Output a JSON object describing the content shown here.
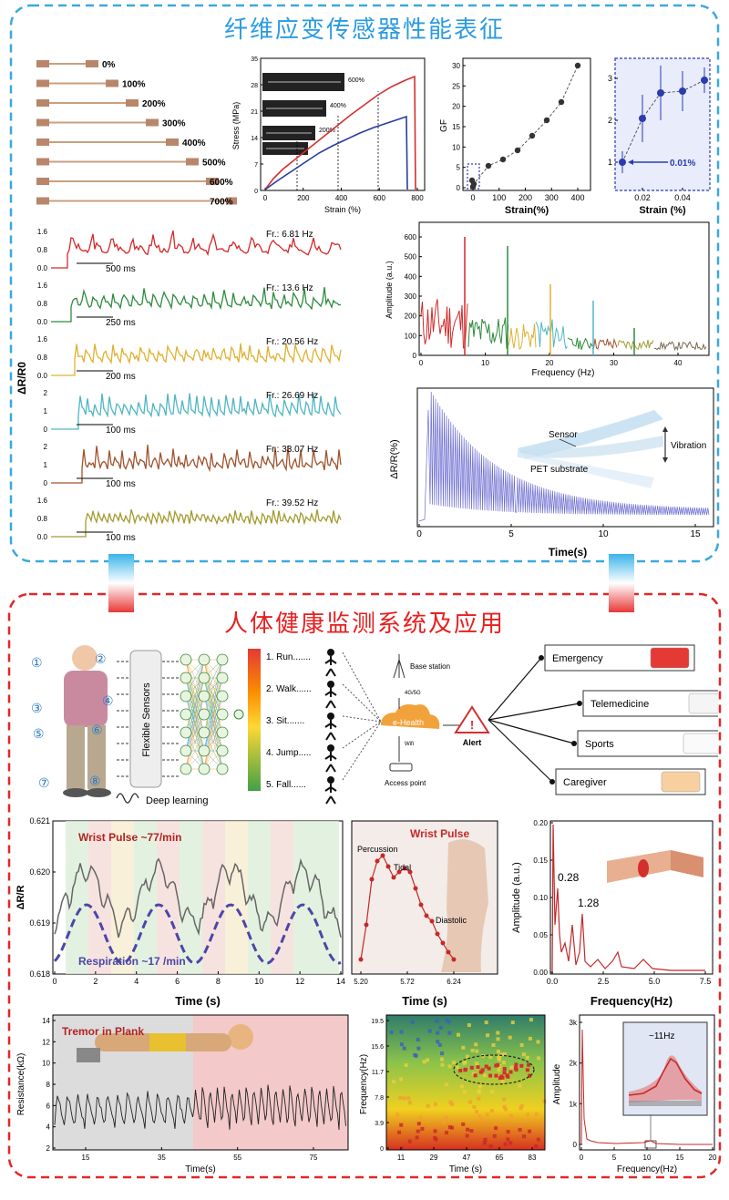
{
  "top_title": "纤维应变传感器性能表征",
  "bottom_title": "人体健康监测系统及应用",
  "strain_photo_labels": [
    "0%",
    "100%",
    "200%",
    "300%",
    "400%",
    "500%",
    "600%",
    "700%"
  ],
  "stress_strain": {
    "ylabel": "Stress (MPa)",
    "xlabel": "Strain (%)",
    "yticks": [
      "0",
      "7",
      "14",
      "21",
      "28",
      "35"
    ],
    "xticks": [
      "0",
      "200",
      "400",
      "600",
      "800"
    ],
    "inset_labels": [
      "200%",
      "400%",
      "600%"
    ]
  },
  "gf_chart": {
    "ylabel": "GF",
    "xlabel": "Strain(%)",
    "yticks": [
      "0",
      "5",
      "10",
      "15",
      "20",
      "25",
      "30"
    ],
    "xticks": [
      "0",
      "100",
      "200",
      "300",
      "400"
    ]
  },
  "gf_zoom": {
    "xlabel": "Strain (%)",
    "yticks": [
      "1",
      "2",
      "3"
    ],
    "xticks": [
      "0.02",
      "0.04"
    ],
    "annotation": "0.01%"
  },
  "vibration_ylabel": "ΔR/R0",
  "vibration_traces": [
    {
      "freq": "Fr.: 6.81 Hz",
      "period": "500 ms",
      "yticks": [
        "0.0",
        "0.8",
        "1.6"
      ],
      "color": "#d62728"
    },
    {
      "freq": "Fr.: 13.6 Hz",
      "period": "250 ms",
      "yticks": [
        "0.0",
        "0.8",
        "1.6"
      ],
      "color": "#2e8b3e"
    },
    {
      "freq": "Fr.: 20.56 Hz",
      "period": "200 ms",
      "yticks": [
        "0.0",
        "0.8",
        "1.6"
      ],
      "color": "#e0b030"
    },
    {
      "freq": "Fr.: 26.69 Hz",
      "period": "100 ms",
      "yticks": [
        "0",
        "1",
        "2"
      ],
      "color": "#4fb6c4"
    },
    {
      "freq": "Fr.: 33.07 Hz",
      "period": "100 ms",
      "yticks": [
        "0",
        "1",
        "2"
      ],
      "color": "#a0522d"
    },
    {
      "freq": "Fr.: 39.52 Hz",
      "period": "100 ms",
      "yticks": [
        "0.0",
        "0.8",
        "1.6"
      ],
      "color": "#a39a30"
    }
  ],
  "spectrum": {
    "ylabel": "Amplitude (a.u.)",
    "xlabel": "Frequency (Hz)",
    "yticks": [
      "0",
      "100",
      "200",
      "300",
      "400",
      "500",
      "600"
    ],
    "xticks": [
      "0",
      "10",
      "20",
      "30",
      "40"
    ]
  },
  "decay": {
    "ylabel": "ΔR/R(%)",
    "xlabel": "Time(s)",
    "xticks": [
      "0",
      "5",
      "10",
      "15"
    ],
    "labels": {
      "sensor": "Sensor",
      "substrate": "PET substrate",
      "vibration": "Vibration"
    }
  },
  "system": {
    "body_markers": [
      "①",
      "②",
      "③",
      "④",
      "⑤",
      "⑥",
      "⑦",
      "⑧"
    ],
    "flexible_sensors": "Flexible Sensors",
    "deep_learning": "Deep learning",
    "activities": [
      "1. Run.......",
      "2. Walk......",
      "3. Sit.......",
      "4. Jump.....",
      "5. Fall......"
    ],
    "base_station": "Base station",
    "network": "4G/5G",
    "ehealth": "e-Health",
    "wifi": "Wifi",
    "access_point": "Access point",
    "alert": "Alert",
    "destinations": [
      "Emergency",
      "Telemedicine",
      "Sports",
      "Caregiver"
    ]
  },
  "pulse_chart": {
    "ylabel": "ΔR/R",
    "xlabel": "Time (s)",
    "yticks": [
      "0.618",
      "0.619",
      "0.620",
      "0.621"
    ],
    "xticks": [
      "0",
      "2",
      "4",
      "6",
      "8",
      "10",
      "12",
      "14"
    ],
    "label_pulse": "Wrist Pulse ~77/min",
    "label_resp": "Respiration ~17 /min"
  },
  "wrist_pulse": {
    "title": "Wrist Pulse",
    "labels": [
      "Percussion",
      "Tidal",
      "Diastolic"
    ],
    "xlabel": "Time (s)",
    "xticks": [
      "5.20",
      "5.72",
      "6.24"
    ]
  },
  "pulse_fft": {
    "ylabel": "Amplitude (a.u.)",
    "xlabel": "Frequency(Hz)",
    "yticks": [
      "0.00",
      "0.05",
      "0.10",
      "0.15",
      "0.20"
    ],
    "xticks": [
      "0.0",
      "2.5",
      "5.0",
      "7.5"
    ],
    "peaks": [
      "0.28",
      "1.28"
    ]
  },
  "tremor": {
    "title": "Tremor in Plank",
    "ylabel": "Resistance(kΩ)",
    "xlabel": "Time(s)",
    "yticks": [
      "2",
      "4",
      "6",
      "8",
      "10",
      "12",
      "14"
    ],
    "xticks": [
      "15",
      "35",
      "55",
      "75"
    ]
  },
  "spectrogram": {
    "ylabel": "Frequency(Hz)",
    "xlabel": "Time (s)",
    "yticks": [
      "0",
      "3.9",
      "7.8",
      "11.7",
      "15.6",
      "19.5"
    ],
    "xticks": [
      "11",
      "29",
      "47",
      "65",
      "83"
    ]
  },
  "tremor_fft": {
    "ylabel": "Amplitude",
    "xlabel": "Frequency(Hz)",
    "yticks": [
      "0",
      "1k",
      "2k",
      "3k"
    ],
    "xticks": [
      "0",
      "5",
      "10",
      "15",
      "20"
    ],
    "annotation": "~11Hz"
  }
}
